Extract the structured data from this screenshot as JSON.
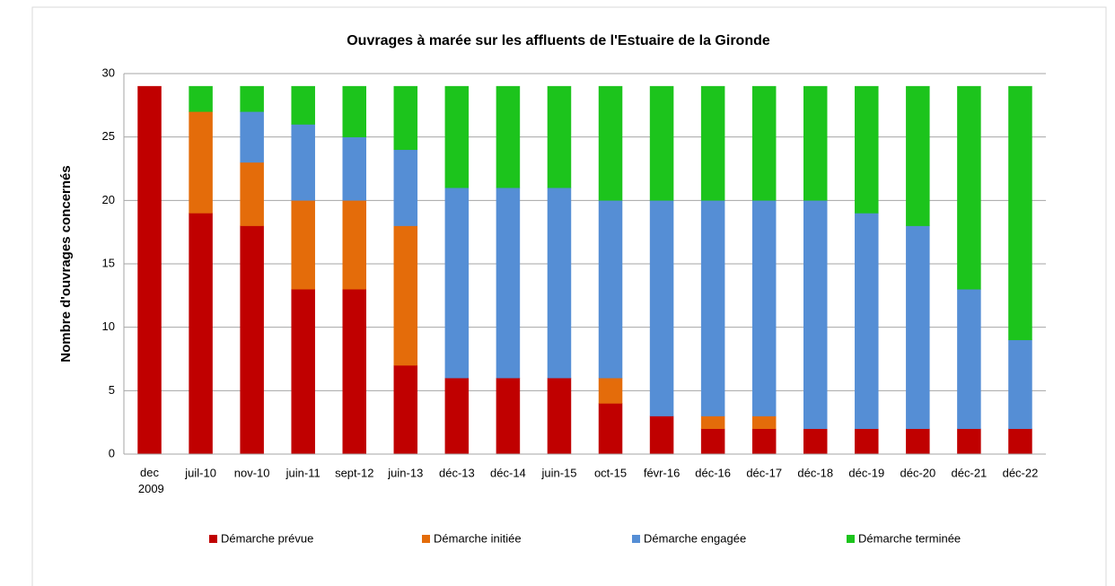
{
  "chart_data": {
    "type": "stacked_bar",
    "title": "Ouvrages à marée sur les affluents de l'Estuaire de la Gironde",
    "y_label": "Nombre d'ouvrages concernés",
    "categories": [
      "dec 2009",
      "juil-10",
      "nov-10",
      "juin-11",
      "sept-12",
      "juin-13",
      "déc-13",
      "déc-14",
      "juin-15",
      "oct-15",
      "févr-16",
      "déc-16",
      "déc-17",
      "déc-18",
      "déc-19",
      "déc-20",
      "déc-21",
      "déc-22"
    ],
    "series": [
      {
        "name": "Démarche prévue",
        "color": "#c00000",
        "values": [
          29,
          19,
          18,
          13,
          13,
          7,
          6,
          6,
          6,
          4,
          3,
          2,
          2,
          2,
          2,
          2,
          2,
          2
        ]
      },
      {
        "name": "Démarche initiée",
        "color": "#e46c0a",
        "values": [
          0,
          8,
          5,
          7,
          7,
          11,
          0,
          0,
          0,
          2,
          0,
          1,
          1,
          0,
          0,
          0,
          0,
          0
        ]
      },
      {
        "name": "Démarche engagée",
        "color": "#558ed5",
        "values": [
          0,
          0,
          4,
          6,
          5,
          6,
          15,
          15,
          15,
          14,
          17,
          17,
          17,
          18,
          17,
          16,
          11,
          7
        ]
      },
      {
        "name": "Démarche terminée",
        "color": "#1cc41c",
        "values": [
          0,
          2,
          2,
          3,
          4,
          5,
          8,
          8,
          8,
          9,
          9,
          9,
          9,
          9,
          10,
          11,
          16,
          20
        ]
      }
    ],
    "ylim": [
      0,
      30
    ],
    "yticks": [
      0,
      5,
      10,
      15,
      20,
      25,
      30
    ],
    "grid": true,
    "legend": "bottom"
  }
}
